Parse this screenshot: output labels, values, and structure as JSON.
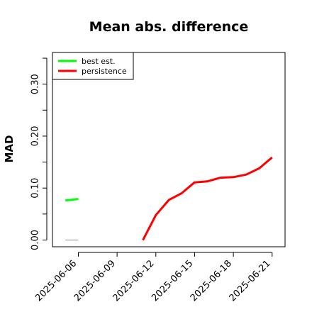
{
  "chart_data": {
    "type": "line",
    "title": "Mean abs. difference",
    "xlabel": "",
    "ylabel": "MAD",
    "ylim": [
      -0.013,
      0.361
    ],
    "xlim": [
      "2025-06-04",
      "2025-06-22"
    ],
    "y_ticks": [
      "0.00",
      "0.10",
      "0.20",
      "0.30"
    ],
    "y_tick_values": [
      0.0,
      0.1,
      0.2,
      0.3
    ],
    "x_ticks": [
      "2025-06-06",
      "2025-06-09",
      "2025-06-12",
      "2025-06-15",
      "2025-06-18",
      "2025-06-21"
    ],
    "legend_position": "top-left",
    "series": [
      {
        "name": "best est.",
        "color": "#00ff00",
        "x": [
          "2025-06-05",
          "2025-06-06"
        ],
        "y": [
          0.076,
          0.079
        ]
      },
      {
        "name": "persistence",
        "color": "#ff0000",
        "x": [
          "2025-06-11",
          "2025-06-12",
          "2025-06-13",
          "2025-06-14",
          "2025-06-15",
          "2025-06-16",
          "2025-06-17",
          "2025-06-18",
          "2025-06-19",
          "2025-06-20",
          "2025-06-21"
        ],
        "y": [
          0.0,
          0.048,
          0.077,
          0.09,
          0.111,
          0.113,
          0.12,
          0.121,
          0.126,
          0.138,
          0.159
        ]
      },
      {
        "color": "#888888",
        "x": [
          "2025-06-05",
          "2025-06-06"
        ],
        "y": [
          0.0,
          0.0
        ]
      }
    ]
  }
}
